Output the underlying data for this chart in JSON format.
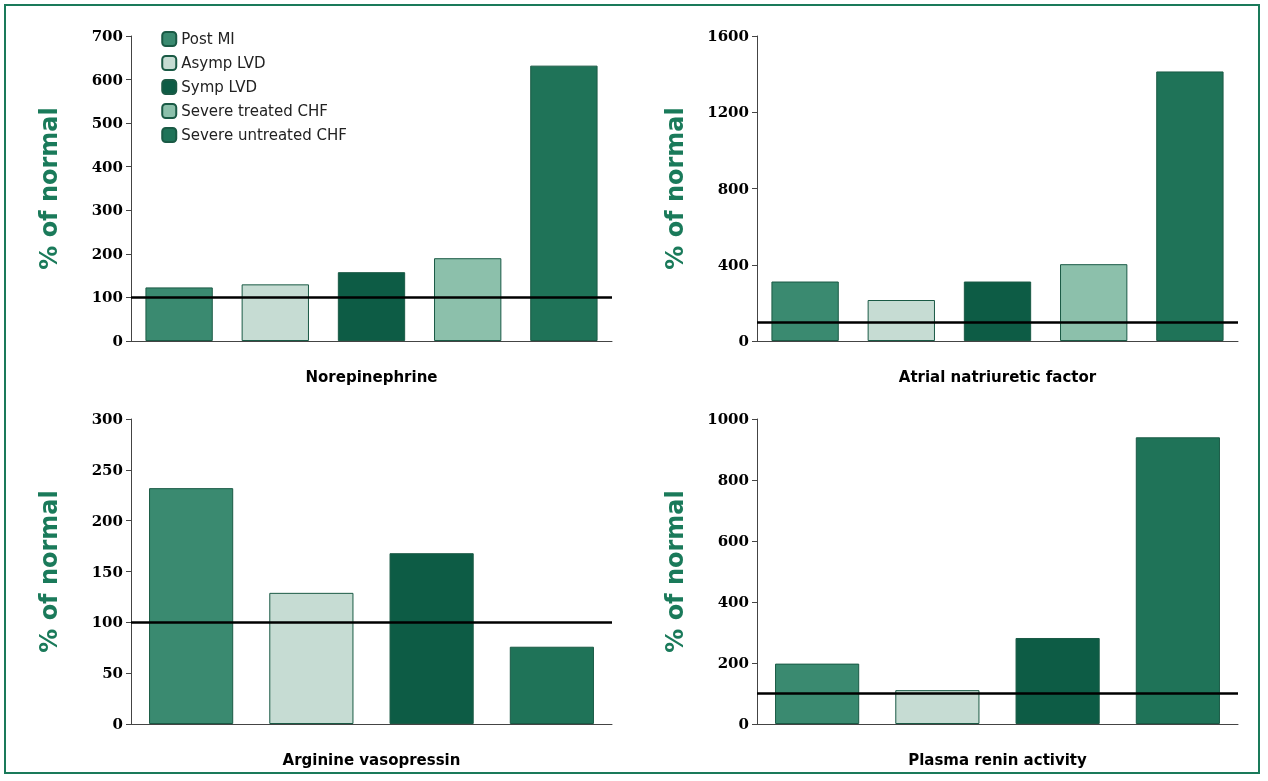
{
  "chart_data": [
    {
      "type": "bar",
      "xlabel": "Norepinephrine",
      "ylabel": "% of normal",
      "categories": [
        null,
        null,
        null,
        null,
        null
      ],
      "ylim": [
        0,
        700
      ],
      "yticks": [
        0,
        100,
        200,
        300,
        400,
        500,
        600,
        700
      ],
      "tick_labels": "y",
      "grid": false,
      "legend": "top left",
      "ref_lines": [
        {
          "axis": "y",
          "value": 100,
          "color": "#000000"
        }
      ],
      "series": [
        {
          "name": "Post MI",
          "color": "#3a8a70",
          "values": [
            123,
            null,
            null,
            null,
            null
          ]
        },
        {
          "name": "Asymp LVD",
          "color": "#c6dcd3",
          "values": [
            null,
            130,
            null,
            null,
            null
          ]
        },
        {
          "name": "Symp LVD",
          "color": "#0d5c45",
          "values": [
            null,
            null,
            158,
            null,
            null
          ]
        },
        {
          "name": "Severe treated CHF",
          "color": "#8cc0ab",
          "values": [
            null,
            null,
            null,
            190,
            null
          ]
        },
        {
          "name": "Severe untreated CHF",
          "color": "#1f7358",
          "values": [
            null,
            null,
            null,
            null,
            632
          ]
        }
      ]
    },
    {
      "type": "bar",
      "xlabel": "Atrial natriuretic factor",
      "ylabel": "% of normal",
      "categories": [
        null,
        null,
        null,
        null,
        null
      ],
      "ylim": [
        0,
        1600
      ],
      "yticks": [
        0,
        400,
        800,
        1200,
        1600
      ],
      "tick_labels": "y",
      "grid": false,
      "ref_lines": [
        {
          "axis": "y",
          "value": 100,
          "color": "#000000"
        }
      ],
      "series": [
        {
          "color": "#3a8a70",
          "values": [
            312,
            null,
            null,
            null,
            null
          ]
        },
        {
          "color": "#c6dcd3",
          "values": [
            null,
            215,
            null,
            null,
            null
          ]
        },
        {
          "color": "#0d5c45",
          "values": [
            null,
            null,
            312,
            null,
            null
          ]
        },
        {
          "color": "#8cc0ab",
          "values": [
            null,
            null,
            null,
            403,
            null
          ]
        },
        {
          "color": "#1f7358",
          "values": [
            null,
            null,
            null,
            null,
            1414
          ]
        }
      ]
    },
    {
      "type": "bar",
      "xlabel": "Arginine vasopressin",
      "ylabel": "% of normal",
      "categories": [
        null,
        null,
        null,
        null
      ],
      "ylim": [
        0,
        300
      ],
      "yticks": [
        0,
        50,
        100,
        150,
        200,
        250,
        300
      ],
      "tick_labels": "y",
      "grid": false,
      "ref_lines": [
        {
          "axis": "y",
          "value": 100,
          "color": "#000000"
        }
      ],
      "series": [
        {
          "color": "#3a8a70",
          "values": [
            232,
            null,
            null,
            null
          ]
        },
        {
          "color": "#c6dcd3",
          "values": [
            null,
            129,
            null,
            null
          ]
        },
        {
          "color": "#0d5c45",
          "values": [
            null,
            null,
            168,
            null
          ]
        },
        {
          "color": "#1f7358",
          "values": [
            null,
            null,
            null,
            76
          ]
        }
      ]
    },
    {
      "type": "bar",
      "xlabel": "Plasma renin activity",
      "ylabel": "% of normal",
      "categories": [
        null,
        null,
        null,
        null
      ],
      "ylim": [
        0,
        1000
      ],
      "yticks": [
        0,
        200,
        400,
        600,
        800,
        1000
      ],
      "tick_labels": "y",
      "grid": false,
      "ref_lines": [
        {
          "axis": "y",
          "value": 100,
          "color": "#000000"
        }
      ],
      "series": [
        {
          "color": "#3a8a70",
          "values": [
            198,
            null,
            null,
            null
          ]
        },
        {
          "color": "#c6dcd3",
          "values": [
            null,
            111,
            null,
            null
          ]
        },
        {
          "color": "#0d5c45",
          "values": [
            null,
            null,
            282,
            null
          ]
        },
        {
          "color": "#1f7358",
          "values": [
            null,
            null,
            null,
            940
          ]
        }
      ]
    }
  ]
}
